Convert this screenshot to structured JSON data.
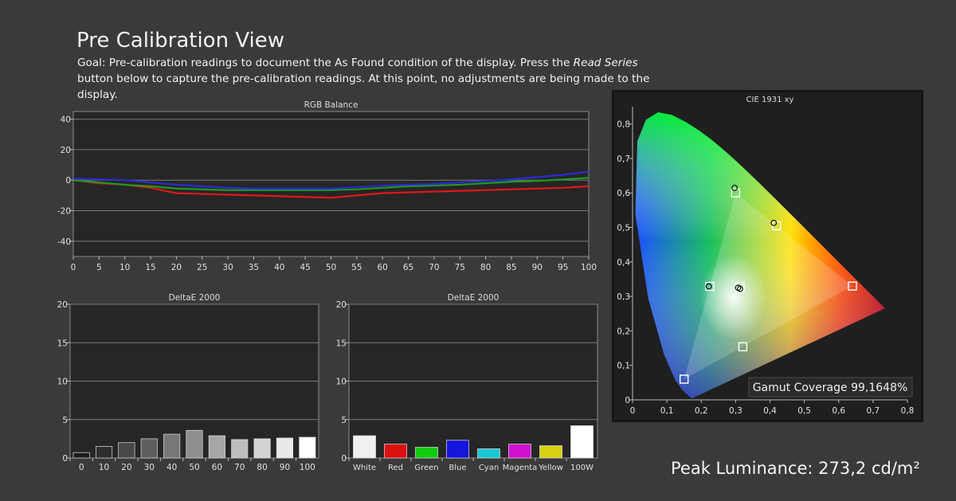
{
  "page": {
    "title": "Pre Calibration View",
    "goal_prefix": "Goal: Pre-calibration readings to document the As Found condition of the display. Press the ",
    "goal_emph": "Read Series",
    "goal_suffix": " button below to capture the pre-calibration readings. At this point, no adjustments are being made to the display.",
    "peak_luminance": "Peak Luminance: 273,2 cd/m²"
  },
  "colors": {
    "background": "#3a3a3a",
    "plot_bg": "#262626",
    "red": "#e01818",
    "green": "#1f9a1f",
    "blue": "#2a2ad8"
  },
  "chart_data": [
    {
      "id": "rgb",
      "type": "line",
      "title": "RGB Balance",
      "x": [
        0,
        5,
        10,
        15,
        20,
        25,
        30,
        35,
        40,
        45,
        50,
        55,
        60,
        65,
        70,
        75,
        80,
        85,
        90,
        95,
        100
      ],
      "xticks": [
        "0",
        "5",
        "10",
        "15",
        "20",
        "25",
        "30",
        "35",
        "40",
        "45",
        "50",
        "55",
        "60",
        "65",
        "70",
        "75",
        "80",
        "85",
        "90",
        "95",
        "100"
      ],
      "yticks": [
        "40",
        "20",
        "0",
        "-20",
        "-40"
      ],
      "ylim": [
        -50,
        45
      ],
      "grid": true,
      "series": [
        {
          "color": "#e01818",
          "values": [
            0,
            -2,
            -3,
            -5,
            -8.5,
            -9,
            -9.5,
            -10,
            -10.5,
            -11,
            -11.5,
            -10,
            -8.5,
            -8,
            -7.5,
            -7,
            -6.5,
            -6,
            -5.5,
            -5,
            -4
          ]
        },
        {
          "color": "#1f9a1f",
          "values": [
            0,
            -1.5,
            -3,
            -4,
            -5.5,
            -6,
            -6.5,
            -6.5,
            -6.5,
            -6.5,
            -6.5,
            -6,
            -5,
            -4,
            -3.5,
            -3,
            -2,
            -1,
            -0.5,
            0.5,
            1.5
          ]
        },
        {
          "color": "#2a2ad8",
          "values": [
            1,
            0.5,
            0,
            -1.5,
            -3,
            -4,
            -5,
            -5.5,
            -5.5,
            -5.5,
            -5.5,
            -4.5,
            -3.5,
            -3,
            -2.5,
            -1.5,
            -0.5,
            0.5,
            2,
            3.5,
            5.5
          ]
        }
      ]
    },
    {
      "id": "de-gray",
      "type": "bar",
      "title": "DeltaE 2000",
      "categories": [
        "0",
        "10",
        "20",
        "30",
        "40",
        "50",
        "60",
        "70",
        "80",
        "90",
        "100"
      ],
      "values": [
        0.7,
        1.5,
        2.0,
        2.5,
        3.1,
        3.6,
        2.9,
        2.4,
        2.5,
        2.6,
        2.7
      ],
      "colors": [
        "#1a1a1a",
        "#2e2e2e",
        "#484848",
        "#5e5e5e",
        "#777777",
        "#8e8e8e",
        "#a6a6a6",
        "#bdbdbd",
        "#d3d3d3",
        "#e9e9e9",
        "#ffffff"
      ],
      "yticks": [
        "20",
        "15",
        "10",
        "5",
        "0"
      ],
      "ylim": [
        0,
        20
      ]
    },
    {
      "id": "de-color",
      "type": "bar",
      "title": "DeltaE 2000",
      "categories": [
        "White",
        "Red",
        "Green",
        "Blue",
        "Cyan",
        "Magenta",
        "Yellow",
        "100W"
      ],
      "values": [
        2.9,
        1.8,
        1.4,
        2.3,
        1.2,
        1.8,
        1.6,
        4.2
      ],
      "colors": [
        "#f0f0f0",
        "#dd1010",
        "#10cc10",
        "#1515dd",
        "#18c8d4",
        "#d010d0",
        "#d8d010",
        "#ffffff"
      ],
      "yticks": [
        "20",
        "15",
        "10",
        "5",
        "0"
      ],
      "ylim": [
        0,
        20
      ]
    },
    {
      "id": "cie",
      "type": "scatter",
      "title": "CIE 1931 xy",
      "xticks": [
        "0",
        "0,1",
        "0,2",
        "0,3",
        "0,4",
        "0,5",
        "0,6",
        "0,7",
        "0,8"
      ],
      "yticks": [
        "0,8",
        "0,7",
        "0,6",
        "0,5",
        "0,4",
        "0,3",
        "0,2",
        "0,1",
        "0"
      ],
      "xlim": [
        0,
        0.8
      ],
      "ylim": [
        0,
        0.85
      ],
      "target_gamut": [
        [
          0.64,
          0.33
        ],
        [
          0.3,
          0.6
        ],
        [
          0.15,
          0.06
        ]
      ],
      "targets": [
        [
          0.64,
          0.33
        ],
        [
          0.3,
          0.6
        ],
        [
          0.15,
          0.06
        ],
        [
          0.225,
          0.329
        ],
        [
          0.321,
          0.154
        ],
        [
          0.419,
          0.505
        ],
        [
          0.3127,
          0.329
        ]
      ],
      "measured": [
        [
          0.297,
          0.615
        ],
        [
          0.411,
          0.513
        ],
        [
          0.222,
          0.329
        ],
        [
          0.313,
          0.322
        ],
        [
          0.307,
          0.325
        ]
      ],
      "gamut_coverage": "Gamut Coverage 99,1648%"
    }
  ]
}
